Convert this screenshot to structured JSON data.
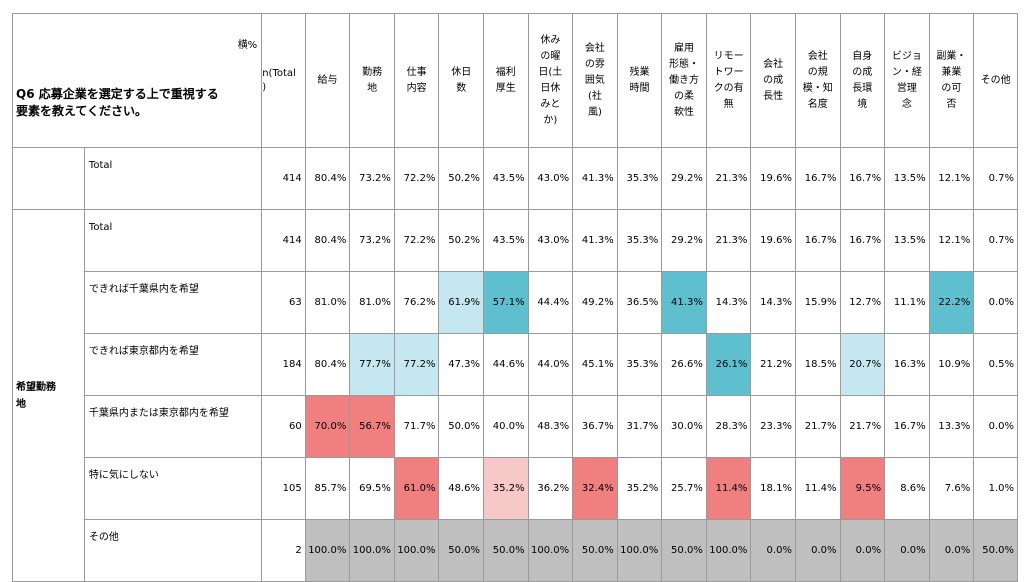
{
  "question": "Q6 応募企業を選定する上で重視する要素を教えてください。",
  "yoko_label": "横%",
  "n_header": "n(Total)",
  "columns": [
    "給与",
    "勤務地",
    "仕事内容",
    "休日数",
    "福利厚生",
    "休みの曜日(土日休みとか)",
    "会社の雰囲気(社風)",
    "残業時間",
    "雇用形態・働き方の柔軟性",
    "リモートワークの有無",
    "会社の成長性",
    "会社の規模・知名度",
    "自身の成長環境",
    "ビジョン・経営理念",
    "副業・兼業の可否",
    "その他"
  ],
  "columns_display": [
    [
      "給与"
    ],
    [
      "勤務",
      "地"
    ],
    [
      "仕事",
      "内容"
    ],
    [
      "休日",
      "数"
    ],
    [
      "福利",
      "厚生"
    ],
    [
      "休み",
      "の曜",
      "日(土",
      "日休",
      "みと",
      "か)"
    ],
    [
      "会社",
      "の雰",
      "囲気",
      "(社",
      "風)"
    ],
    [
      "残業",
      "時間"
    ],
    [
      "雇用",
      "形態・",
      "働き方",
      "の柔",
      "軟性"
    ],
    [
      "リモー",
      "トワー",
      "クの有",
      "無"
    ],
    [
      "会社",
      "の成",
      "長性"
    ],
    [
      "会社",
      "の規",
      "模・知",
      "名度"
    ],
    [
      "自身",
      "の成",
      "長環",
      "境"
    ],
    [
      "ビジョ",
      "ン・経",
      "営理",
      "念"
    ],
    [
      "副業・",
      "兼業",
      "の可",
      "否"
    ],
    [
      "その他"
    ]
  ],
  "group_label": "希望勤務地",
  "colors": {
    "blue_dark": "#5ebfcf",
    "blue_light": "#c5e8f0",
    "red_dark": "#f08080",
    "red_light": "#f7c8c8",
    "gray": "#bfbfbf"
  },
  "rows": [
    {
      "label": "Total",
      "n": "414",
      "values": [
        "80.4%",
        "73.2%",
        "72.2%",
        "50.2%",
        "43.5%",
        "43.0%",
        "41.3%",
        "35.3%",
        "29.2%",
        "21.3%",
        "19.6%",
        "16.7%",
        "16.7%",
        "13.5%",
        "12.1%",
        "0.7%"
      ],
      "shade": [
        "",
        "",
        "",
        "",
        "",
        "",
        "",
        "",
        "",
        "",
        "",
        "",
        "",
        "",
        "",
        ""
      ]
    },
    {
      "label": "Total",
      "n": "414",
      "values": [
        "80.4%",
        "73.2%",
        "72.2%",
        "50.2%",
        "43.5%",
        "43.0%",
        "41.3%",
        "35.3%",
        "29.2%",
        "21.3%",
        "19.6%",
        "16.7%",
        "16.7%",
        "13.5%",
        "12.1%",
        "0.7%"
      ],
      "shade": [
        "",
        "",
        "",
        "",
        "",
        "",
        "",
        "",
        "",
        "",
        "",
        "",
        "",
        "",
        "",
        ""
      ]
    },
    {
      "label": "できれば千葉県内を希望",
      "n": "63",
      "values": [
        "81.0%",
        "81.0%",
        "76.2%",
        "61.9%",
        "57.1%",
        "44.4%",
        "49.2%",
        "36.5%",
        "41.3%",
        "14.3%",
        "14.3%",
        "15.9%",
        "12.7%",
        "11.1%",
        "22.2%",
        "0.0%"
      ],
      "shade": [
        "",
        "",
        "",
        "blue_light",
        "blue_dark",
        "",
        "",
        "",
        "blue_dark",
        "",
        "",
        "",
        "",
        "",
        "blue_dark",
        ""
      ]
    },
    {
      "label": "できれば東京都内を希望",
      "n": "184",
      "values": [
        "80.4%",
        "77.7%",
        "77.2%",
        "47.3%",
        "44.6%",
        "44.0%",
        "45.1%",
        "35.3%",
        "26.6%",
        "26.1%",
        "21.2%",
        "18.5%",
        "20.7%",
        "16.3%",
        "10.9%",
        "0.5%"
      ],
      "shade": [
        "",
        "blue_light",
        "blue_light",
        "",
        "",
        "",
        "",
        "",
        "",
        "blue_dark",
        "",
        "",
        "blue_light",
        "",
        "",
        ""
      ]
    },
    {
      "label": "千葉県内または東京都内を希望",
      "n": "60",
      "values": [
        "70.0%",
        "56.7%",
        "71.7%",
        "50.0%",
        "40.0%",
        "48.3%",
        "36.7%",
        "31.7%",
        "30.0%",
        "28.3%",
        "23.3%",
        "21.7%",
        "21.7%",
        "16.7%",
        "13.3%",
        "0.0%"
      ],
      "shade": [
        "red_dark",
        "red_dark",
        "",
        "",
        "",
        "",
        "",
        "",
        "",
        "",
        "",
        "",
        "",
        "",
        "",
        ""
      ]
    },
    {
      "label": "特に気にしない",
      "n": "105",
      "values": [
        "85.7%",
        "69.5%",
        "61.0%",
        "48.6%",
        "35.2%",
        "36.2%",
        "32.4%",
        "35.2%",
        "25.7%",
        "11.4%",
        "18.1%",
        "11.4%",
        "9.5%",
        "8.6%",
        "7.6%",
        "1.0%"
      ],
      "shade": [
        "",
        "",
        "red_dark",
        "",
        "red_light",
        "",
        "red_dark",
        "",
        "",
        "red_dark",
        "",
        "",
        "red_dark",
        "",
        "",
        ""
      ]
    },
    {
      "label": "その他",
      "n": "2",
      "values": [
        "100.0%",
        "100.0%",
        "100.0%",
        "50.0%",
        "50.0%",
        "100.0%",
        "50.0%",
        "100.0%",
        "50.0%",
        "100.0%",
        "0.0%",
        "0.0%",
        "0.0%",
        "0.0%",
        "0.0%",
        "50.0%"
      ],
      "shade": [
        "gray",
        "gray",
        "gray",
        "gray",
        "gray",
        "gray",
        "gray",
        "gray",
        "gray",
        "gray",
        "gray",
        "gray",
        "gray",
        "gray",
        "gray",
        "gray"
      ]
    }
  ]
}
